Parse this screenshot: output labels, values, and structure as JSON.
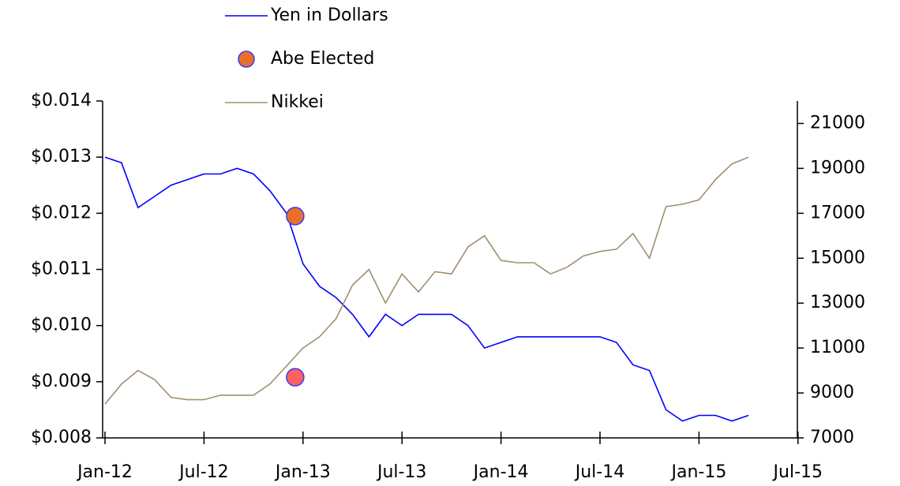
{
  "chart_data": {
    "type": "line",
    "x": [
      "Jan-12",
      "Feb-12",
      "Mar-12",
      "Apr-12",
      "May-12",
      "Jun-12",
      "Jul-12",
      "Aug-12",
      "Sep-12",
      "Oct-12",
      "Nov-12",
      "Dec-12",
      "Jan-13",
      "Feb-13",
      "Mar-13",
      "Apr-13",
      "May-13",
      "Jun-13",
      "Jul-13",
      "Aug-13",
      "Sep-13",
      "Oct-13",
      "Nov-13",
      "Dec-13",
      "Jan-14",
      "Feb-14",
      "Mar-14",
      "Apr-14",
      "May-14",
      "Jun-14",
      "Jul-14",
      "Aug-14",
      "Sep-14",
      "Oct-14",
      "Nov-14",
      "Dec-14",
      "Jan-15",
      "Feb-15",
      "Mar-15",
      "Apr-15"
    ],
    "series": [
      {
        "name": "Yen in Dollars",
        "color": "#0000ff",
        "axis": "y",
        "values": [
          0.013,
          0.0129,
          0.0121,
          0.0123,
          0.0125,
          0.0126,
          0.0127,
          0.0127,
          0.0128,
          0.0127,
          0.0124,
          0.012,
          0.0111,
          0.0107,
          0.0105,
          0.0102,
          0.0098,
          0.0102,
          0.01,
          0.0102,
          0.0102,
          0.0102,
          0.01,
          0.0096,
          0.0097,
          0.0098,
          0.0098,
          0.0098,
          0.0098,
          0.0098,
          0.0098,
          0.0097,
          0.0093,
          0.0092,
          0.0085,
          0.0083,
          0.0084,
          0.0084,
          0.0083,
          0.0084
        ]
      },
      {
        "name": "Nikkei",
        "color": "#a09070",
        "axis": "y2",
        "values": [
          8500,
          9400,
          10000,
          9600,
          8800,
          8700,
          8700,
          8900,
          8900,
          8900,
          9400,
          10200,
          11000,
          11500,
          12300,
          13800,
          14500,
          13000,
          14300,
          13500,
          14400,
          14300,
          15500,
          16000,
          14900,
          14800,
          14800,
          14300,
          14600,
          15100,
          15300,
          15400,
          16100,
          15000,
          17300,
          17400,
          17600,
          18500,
          19200,
          19500
        ]
      }
    ],
    "markers": {
      "name": "Abe Elected",
      "color": "#e8702a",
      "edge": "#3a3aff",
      "points": [
        {
          "x": "Dec-12",
          "y": 0.01195,
          "axis": "y",
          "color": "#e8702a"
        },
        {
          "x": "Dec-12",
          "y": 9700,
          "axis": "y2",
          "color": "#ff6060"
        }
      ]
    },
    "xticks": [
      "Jan-12",
      "Jul-12",
      "Jan-13",
      "Jul-13",
      "Jan-14",
      "Jul-14",
      "Jan-15",
      "Jul-15"
    ],
    "ylim": [
      0.008,
      0.014
    ],
    "yticks": [
      {
        "value": 0.008,
        "label": "$0.008"
      },
      {
        "value": 0.009,
        "label": "$0.009"
      },
      {
        "value": 0.01,
        "label": "$0.010"
      },
      {
        "value": 0.011,
        "label": "$0.011"
      },
      {
        "value": 0.012,
        "label": "$0.012"
      },
      {
        "value": 0.013,
        "label": "$0.013"
      },
      {
        "value": 0.014,
        "label": "$0.014"
      }
    ],
    "y2lim": [
      7000,
      22000
    ],
    "y2ticks": [
      7000,
      9000,
      11000,
      13000,
      15000,
      17000,
      19000,
      21000
    ]
  }
}
